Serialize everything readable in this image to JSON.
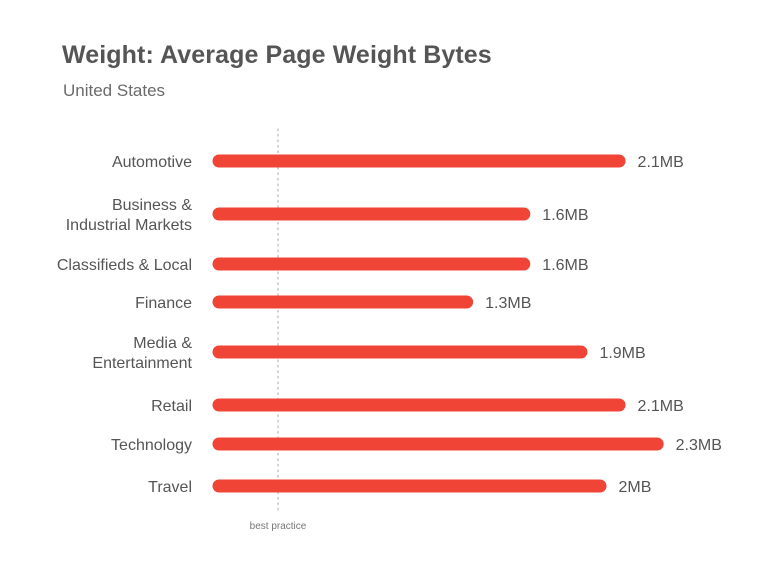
{
  "chart_data": {
    "type": "bar",
    "orientation": "horizontal",
    "title": "Weight: Average Page Weight Bytes",
    "subtitle": "United States",
    "unit": "MB",
    "xlim": [
      0,
      2.3
    ],
    "categories": [
      [
        "Automotive"
      ],
      [
        "Business &",
        "Industrial Markets"
      ],
      [
        "Classifieds & Local"
      ],
      [
        "Finance"
      ],
      [
        "Media &",
        "Entertainment"
      ],
      [
        "Retail"
      ],
      [
        "Technology"
      ],
      [
        "Travel"
      ]
    ],
    "values": [
      2.1,
      1.6,
      1.6,
      1.3,
      1.9,
      2.1,
      2.3,
      2.0
    ],
    "value_labels": [
      "2.1MB",
      "1.6MB",
      "1.6MB",
      "1.3MB",
      "1.9MB",
      "2.1MB",
      "2.3MB",
      "2MB"
    ],
    "reference_line": {
      "label": "best practice",
      "value": 0.3
    },
    "bar_color": "#f04437",
    "reference_color": "#bbbbbb"
  }
}
